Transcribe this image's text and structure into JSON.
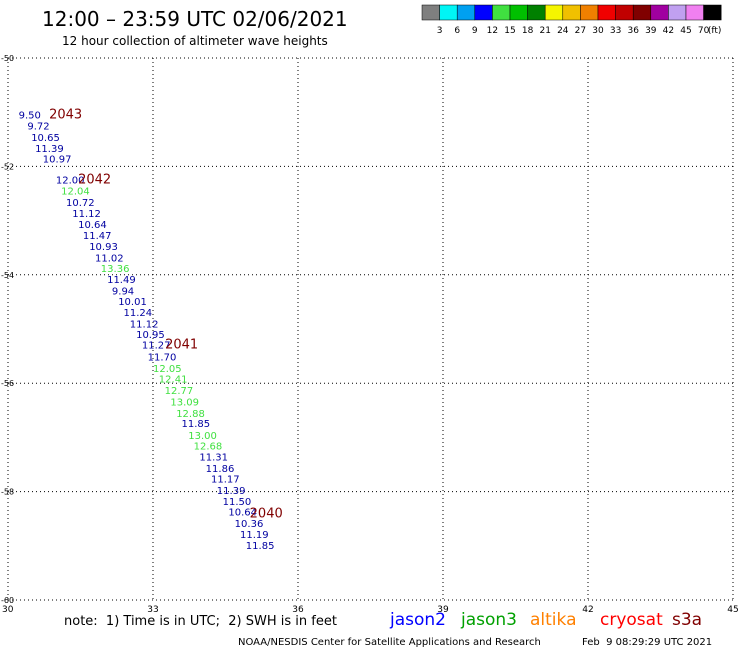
{
  "header": {
    "title": "12:00 – 23:59 UTC 02/06/2021",
    "subtitle": "12 hour collection of altimeter wave heights"
  },
  "colorbar": {
    "labels": [
      "3",
      "6",
      "9",
      "12",
      "15",
      "18",
      "21",
      "24",
      "27",
      "30",
      "33",
      "36",
      "39",
      "42",
      "45",
      "70"
    ],
    "colors": [
      "#7f7f7f",
      "#00f5f5",
      "#00a0f0",
      "#0000ff",
      "#40e040",
      "#00c000",
      "#008000",
      "#f5f500",
      "#f0c000",
      "#f08000",
      "#f00000",
      "#c00000",
      "#800000",
      "#a000a0",
      "#c0a0f0",
      "#f080f0",
      "#000000"
    ],
    "unit": "(ft)"
  },
  "chart_data": {
    "type": "scatter",
    "xlim": [
      30,
      45
    ],
    "ylim": [
      -60,
      -50
    ],
    "xticks": [
      "30",
      "33",
      "36",
      "39",
      "42",
      "45"
    ],
    "yticks": [
      "-50",
      "-52",
      "-54",
      "-56",
      "-58",
      "-60"
    ],
    "grid": true,
    "points": [
      {
        "lon": 30.22,
        "lat": -51.12,
        "label": "9.50",
        "color": "#0000a0"
      },
      {
        "lon": 30.4,
        "lat": -51.32,
        "label": "9.72",
        "color": "#0000a0"
      },
      {
        "lon": 30.48,
        "lat": -51.53,
        "label": "10.65",
        "color": "#0000a0"
      },
      {
        "lon": 30.56,
        "lat": -51.73,
        "label": "11.39",
        "color": "#0000a0"
      },
      {
        "lon": 30.72,
        "lat": -51.93,
        "label": "10.97",
        "color": "#0000a0"
      },
      {
        "lon": 30.99,
        "lat": -52.32,
        "label": "12.00",
        "color": "#0000a0"
      },
      {
        "lon": 31.1,
        "lat": -52.52,
        "label": "12.04",
        "color": "#40e040"
      },
      {
        "lon": 31.2,
        "lat": -52.73,
        "label": "10.72",
        "color": "#0000a0"
      },
      {
        "lon": 31.33,
        "lat": -52.93,
        "label": "11.12",
        "color": "#0000a0"
      },
      {
        "lon": 31.45,
        "lat": -53.14,
        "label": "10.64",
        "color": "#0000a0"
      },
      {
        "lon": 31.55,
        "lat": -53.34,
        "label": "11.47",
        "color": "#0000a0"
      },
      {
        "lon": 31.68,
        "lat": -53.54,
        "label": "10.93",
        "color": "#0000a0"
      },
      {
        "lon": 31.8,
        "lat": -53.75,
        "label": "11.02",
        "color": "#0000a0"
      },
      {
        "lon": 31.92,
        "lat": -53.95,
        "label": "13.36",
        "color": "#40e040"
      },
      {
        "lon": 32.05,
        "lat": -54.15,
        "label": "11.49",
        "color": "#0000a0"
      },
      {
        "lon": 32.15,
        "lat": -54.36,
        "label": "9.94",
        "color": "#0000a0"
      },
      {
        "lon": 32.28,
        "lat": -54.56,
        "label": "10.01",
        "color": "#0000a0"
      },
      {
        "lon": 32.39,
        "lat": -54.76,
        "label": "11.24",
        "color": "#0000a0"
      },
      {
        "lon": 32.52,
        "lat": -54.97,
        "label": "11.12",
        "color": "#0000a0"
      },
      {
        "lon": 32.65,
        "lat": -55.17,
        "label": "10.95",
        "color": "#0000a0"
      },
      {
        "lon": 32.77,
        "lat": -55.36,
        "label": "11.27",
        "color": "#0000a0"
      },
      {
        "lon": 32.89,
        "lat": -55.58,
        "label": "11.70",
        "color": "#0000a0"
      },
      {
        "lon": 33.0,
        "lat": -55.79,
        "label": "12.05",
        "color": "#40e040"
      },
      {
        "lon": 33.12,
        "lat": -55.99,
        "label": "12.41",
        "color": "#40e040"
      },
      {
        "lon": 33.24,
        "lat": -56.2,
        "label": "12.77",
        "color": "#40e040"
      },
      {
        "lon": 33.36,
        "lat": -56.41,
        "label": "13.09",
        "color": "#40e040"
      },
      {
        "lon": 33.48,
        "lat": -56.62,
        "label": "12.88",
        "color": "#40e040"
      },
      {
        "lon": 33.59,
        "lat": -56.81,
        "label": "11.85",
        "color": "#0000a0"
      },
      {
        "lon": 33.73,
        "lat": -57.03,
        "label": "13.00",
        "color": "#40e040"
      },
      {
        "lon": 33.84,
        "lat": -57.22,
        "label": "12.68",
        "color": "#40e040"
      },
      {
        "lon": 33.96,
        "lat": -57.43,
        "label": "11.31",
        "color": "#0000a0"
      },
      {
        "lon": 34.09,
        "lat": -57.64,
        "label": "11.86",
        "color": "#0000a0"
      },
      {
        "lon": 34.2,
        "lat": -57.83,
        "label": "11.17",
        "color": "#0000a0"
      },
      {
        "lon": 34.32,
        "lat": -58.04,
        "label": "11.39",
        "color": "#0000a0"
      },
      {
        "lon": 34.44,
        "lat": -58.25,
        "label": "11.50",
        "color": "#0000a0"
      },
      {
        "lon": 34.56,
        "lat": -58.44,
        "label": "10.64",
        "color": "#0000a0"
      },
      {
        "lon": 34.69,
        "lat": -58.65,
        "label": "10.36",
        "color": "#0000a0"
      },
      {
        "lon": 34.8,
        "lat": -58.86,
        "label": "11.19",
        "color": "#0000a0"
      },
      {
        "lon": 34.92,
        "lat": -59.06,
        "label": "11.85",
        "color": "#0000a0"
      }
    ],
    "pass_labels": [
      {
        "lon": 30.85,
        "lat": -51.12,
        "text": "2043",
        "color": "#800000"
      },
      {
        "lon": 31.45,
        "lat": -52.32,
        "text": "2042",
        "color": "#800000"
      },
      {
        "lon": 33.25,
        "lat": -55.36,
        "text": "2041",
        "color": "#800000"
      },
      {
        "lon": 35.0,
        "lat": -58.48,
        "text": "2040",
        "color": "#800000"
      }
    ]
  },
  "footer": {
    "note": "note:  1) Time is in UTC;  2) SWH is in feet",
    "satellites": [
      {
        "name": "jason2",
        "color": "#0000ff"
      },
      {
        "name": "jason3",
        "color": "#00a000"
      },
      {
        "name": "altika",
        "color": "#ff8000"
      },
      {
        "name": "cryosat",
        "color": "#ff0000"
      },
      {
        "name": "s3a",
        "color": "#800000"
      }
    ],
    "credit": "NOAA/NESDIS Center for Satellite Applications and Research",
    "timestamp": "Feb  9 08:29:29 UTC 2021"
  }
}
